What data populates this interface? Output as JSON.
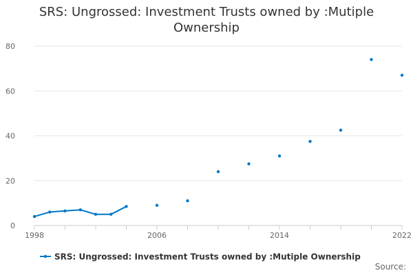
{
  "chart_data": {
    "type": "line",
    "title": "SRS: Ungrossed: Investment Trusts owned by :Mutiple Ownership",
    "xlabel": "",
    "ylabel": "",
    "xlim": [
      1998,
      2022
    ],
    "ylim": [
      0,
      80
    ],
    "x_ticks": [
      "1998",
      "2006",
      "2014",
      "2022"
    ],
    "y_ticks": [
      "0",
      "20",
      "40",
      "60",
      "80"
    ],
    "grid": true,
    "legend_position": "bottom-center",
    "series": [
      {
        "name": "SRS: Ungrossed: Investment Trusts owned by :Mutiple Ownership",
        "color": "#0077c8",
        "points": [
          {
            "x": 1998,
            "y": 4
          },
          {
            "x": 1999,
            "y": 6
          },
          {
            "x": 2000,
            "y": 6.5
          },
          {
            "x": 2001,
            "y": 7
          },
          {
            "x": 2002,
            "y": 5
          },
          {
            "x": 2003,
            "y": 5
          },
          {
            "x": 2004,
            "y": 8.5
          },
          {
            "x": 2006,
            "y": 9
          },
          {
            "x": 2008,
            "y": 11
          },
          {
            "x": 2010,
            "y": 24
          },
          {
            "x": 2012,
            "y": 27.5
          },
          {
            "x": 2014,
            "y": 31
          },
          {
            "x": 2016,
            "y": 37.5
          },
          {
            "x": 2018,
            "y": 42.5
          },
          {
            "x": 2020,
            "y": 74
          },
          {
            "x": 2022,
            "y": 67
          }
        ]
      }
    ]
  },
  "footer": {
    "source_label": "Source:"
  }
}
